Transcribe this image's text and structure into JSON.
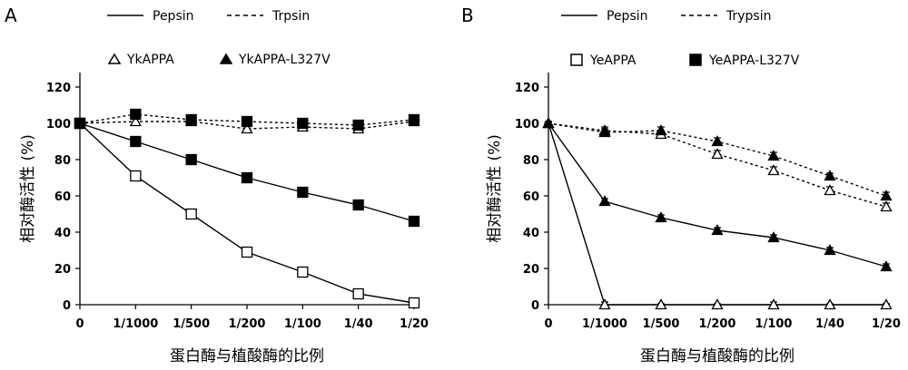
{
  "chart_data": [
    {
      "type": "line",
      "panel_label": "A",
      "categories": [
        "0",
        "1/1000",
        "1/500",
        "1/200",
        "1/100",
        "1/40",
        "1/20"
      ],
      "xlabel": "蛋白酶与植酸酶的比例",
      "ylabel": "相对酶活性 (%)",
      "ylim": [
        0,
        120
      ],
      "yticks": [
        "0",
        "20",
        "40",
        "60",
        "80",
        "100",
        "120"
      ],
      "grid": false,
      "legend": {
        "position": "top",
        "line_styles": [
          {
            "label": "Pepsin",
            "style": "solid"
          },
          {
            "label": "Trpsin",
            "style": "dashed"
          }
        ],
        "markers": [
          {
            "label": "YkAPPA",
            "marker": "open-triangle"
          },
          {
            "label": "YkAPPA-L327V",
            "marker": "filled-triangle"
          }
        ]
      },
      "series": [
        {
          "enzyme": "Pepsin",
          "protein": "YkAPPA",
          "marker": "open-square",
          "style": "solid",
          "values": [
            100,
            71,
            50,
            29,
            18,
            6,
            1
          ],
          "errors": [
            1,
            2,
            1.5,
            1.5,
            2,
            1,
            1
          ]
        },
        {
          "enzyme": "Pepsin",
          "protein": "YkAPPA-L327V",
          "marker": "filled-square",
          "style": "solid",
          "values": [
            100,
            90,
            80,
            70,
            62,
            55,
            46
          ],
          "errors": [
            1,
            1.5,
            2,
            2,
            1,
            1.5,
            2
          ]
        },
        {
          "enzyme": "Trpsin",
          "protein": "YkAPPA",
          "marker": "open-triangle",
          "style": "dashed",
          "values": [
            100,
            101,
            101,
            97,
            98,
            97,
            101
          ],
          "errors": [
            1,
            2,
            2,
            2,
            2,
            2,
            1.5
          ]
        },
        {
          "enzyme": "Trpsin",
          "protein": "YkAPPA-L327V",
          "marker": "filled-square",
          "style": "dashed",
          "values": [
            100,
            105,
            102,
            101,
            100,
            99,
            102
          ],
          "errors": [
            1,
            2,
            2,
            1.5,
            1,
            1,
            1
          ]
        }
      ]
    },
    {
      "type": "line",
      "panel_label": "B",
      "categories": [
        "0",
        "1/1000",
        "1/500",
        "1/200",
        "1/100",
        "1/40",
        "1/20"
      ],
      "xlabel": "蛋白酶与植酸酶的比例",
      "ylabel": "相对酶活性 (%)",
      "ylim": [
        0,
        120
      ],
      "yticks": [
        "0",
        "20",
        "40",
        "60",
        "80",
        "100",
        "120"
      ],
      "grid": false,
      "legend": {
        "position": "top",
        "line_styles": [
          {
            "label": "Pepsin",
            "style": "solid"
          },
          {
            "label": "Trypsin",
            "style": "dashed"
          }
        ],
        "markers": [
          {
            "label": "YeAPPA",
            "marker": "open-square"
          },
          {
            "label": "YeAPPA-L327V",
            "marker": "filled-square"
          }
        ]
      },
      "series": [
        {
          "enzyme": "Pepsin",
          "protein": "YeAPPA",
          "marker": "open-triangle",
          "style": "solid",
          "values": [
            100,
            0,
            0,
            0,
            0,
            0,
            0
          ],
          "errors": [
            1,
            1.5,
            0.5,
            0.5,
            1.5,
            0.5,
            0.5
          ]
        },
        {
          "enzyme": "Pepsin",
          "protein": "YeAPPA-L327V",
          "marker": "filled-triangle",
          "style": "solid",
          "values": [
            100,
            57,
            48,
            41,
            37,
            30,
            21
          ],
          "errors": [
            1,
            1.5,
            1.5,
            1.5,
            1.5,
            1.5,
            1.5
          ]
        },
        {
          "enzyme": "Trypsin",
          "protein": "YeAPPA",
          "marker": "open-triangle",
          "style": "dashed",
          "values": [
            100,
            96,
            94,
            83,
            74,
            63,
            54
          ],
          "errors": [
            1,
            2,
            2,
            2,
            2,
            2,
            2
          ]
        },
        {
          "enzyme": "Trypsin",
          "protein": "YeAPPA-L327V",
          "marker": "filled-triangle",
          "style": "dashed",
          "values": [
            100,
            95,
            96,
            90,
            82,
            71,
            60
          ],
          "errors": [
            1,
            2,
            2,
            2,
            2,
            1.5,
            2
          ]
        }
      ]
    }
  ]
}
